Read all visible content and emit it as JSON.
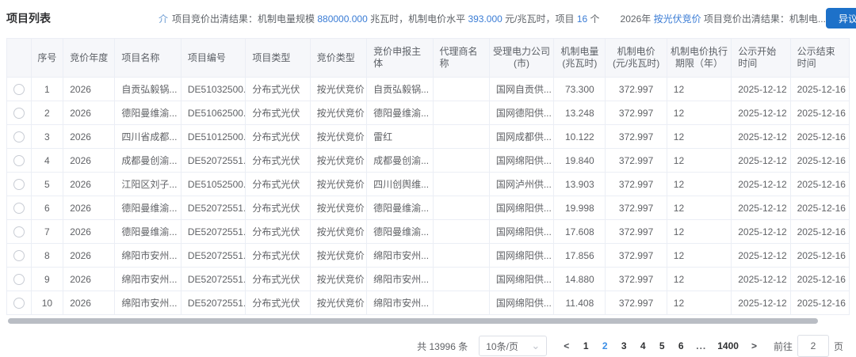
{
  "header": {
    "title": "项目列表",
    "announcement": {
      "icon": "介",
      "text1": "项目竞价出清结果：机制电量规模 ",
      "value1": "880000.000",
      "text2": " 兆瓦时，机制电价水平 ",
      "value2": "393.000",
      "text3": " 元/兆瓦时，项目 ",
      "value3": "16",
      "text4": " 个"
    },
    "announcement2": {
      "text1": "2026年 ",
      "link": "按光伏竞价",
      "text2": " 项目竞价出清结果：机制电..."
    },
    "feedback_button": "异议反馈"
  },
  "table": {
    "columns": [
      {
        "key": "select",
        "label": ""
      },
      {
        "key": "seq",
        "label": "序号"
      },
      {
        "key": "year",
        "label": "竞价年度"
      },
      {
        "key": "name",
        "label": "项目名称"
      },
      {
        "key": "code",
        "label": "项目编号"
      },
      {
        "key": "type",
        "label": "项目类型"
      },
      {
        "key": "bid_type",
        "label": "竞价类型"
      },
      {
        "key": "entity",
        "label": "竞价申报主体"
      },
      {
        "key": "agent",
        "label": "代理商名称"
      },
      {
        "key": "company",
        "label": "受理电力公司\n(市)"
      },
      {
        "key": "energy",
        "label": "机制电量\n(兆瓦时)"
      },
      {
        "key": "price",
        "label": "机制电价\n(元/兆瓦时)"
      },
      {
        "key": "term",
        "label": "机制电价执行\n期限（年）"
      },
      {
        "key": "start",
        "label": "公示开始时间"
      },
      {
        "key": "end",
        "label": "公示结束时间"
      }
    ],
    "rows": [
      {
        "seq": "1",
        "year": "2026",
        "name": "自贡弘毅锅...",
        "code": "DE51032500...",
        "type": "分布式光伏",
        "bid_type": "按光伏竞价",
        "entity": "自贡弘毅锅...",
        "agent": "",
        "company": "国网自贡供...",
        "energy": "73.300",
        "price": "372.997",
        "term": "12",
        "start": "2025-12-12",
        "end": "2025-12-16"
      },
      {
        "seq": "2",
        "year": "2026",
        "name": "德阳曼维渝...",
        "code": "DE51062500...",
        "type": "分布式光伏",
        "bid_type": "按光伏竞价",
        "entity": "德阳曼维渝...",
        "agent": "",
        "company": "国网德阳供...",
        "energy": "13.248",
        "price": "372.997",
        "term": "12",
        "start": "2025-12-12",
        "end": "2025-12-16"
      },
      {
        "seq": "3",
        "year": "2026",
        "name": "四川省成都...",
        "code": "DE51012500...",
        "type": "分布式光伏",
        "bid_type": "按光伏竞价",
        "entity": "雷红",
        "agent": "",
        "company": "国网成都供...",
        "energy": "10.122",
        "price": "372.997",
        "term": "12",
        "start": "2025-12-12",
        "end": "2025-12-16"
      },
      {
        "seq": "4",
        "year": "2026",
        "name": "成都曼创渝...",
        "code": "DE52072551...",
        "type": "分布式光伏",
        "bid_type": "按光伏竞价",
        "entity": "成都曼创渝...",
        "agent": "",
        "company": "国网绵阳供...",
        "energy": "19.840",
        "price": "372.997",
        "term": "12",
        "start": "2025-12-12",
        "end": "2025-12-16"
      },
      {
        "seq": "5",
        "year": "2026",
        "name": "江阳区刘子...",
        "code": "DE51052500...",
        "type": "分布式光伏",
        "bid_type": "按光伏竞价",
        "entity": "四川创舆维...",
        "agent": "",
        "company": "国网泸州供...",
        "energy": "13.903",
        "price": "372.997",
        "term": "12",
        "start": "2025-12-12",
        "end": "2025-12-16"
      },
      {
        "seq": "6",
        "year": "2026",
        "name": "德阳曼维渝...",
        "code": "DE52072551...",
        "type": "分布式光伏",
        "bid_type": "按光伏竞价",
        "entity": "德阳曼维渝...",
        "agent": "",
        "company": "国网绵阳供...",
        "energy": "19.998",
        "price": "372.997",
        "term": "12",
        "start": "2025-12-12",
        "end": "2025-12-16"
      },
      {
        "seq": "7",
        "year": "2026",
        "name": "德阳曼维渝...",
        "code": "DE52072551...",
        "type": "分布式光伏",
        "bid_type": "按光伏竞价",
        "entity": "德阳曼维渝...",
        "agent": "",
        "company": "国网绵阳供...",
        "energy": "17.608",
        "price": "372.997",
        "term": "12",
        "start": "2025-12-12",
        "end": "2025-12-16"
      },
      {
        "seq": "8",
        "year": "2026",
        "name": "绵阳市安州...",
        "code": "DE52072551...",
        "type": "分布式光伏",
        "bid_type": "按光伏竞价",
        "entity": "绵阳市安州...",
        "agent": "",
        "company": "国网绵阳供...",
        "energy": "17.856",
        "price": "372.997",
        "term": "12",
        "start": "2025-12-12",
        "end": "2025-12-16"
      },
      {
        "seq": "9",
        "year": "2026",
        "name": "绵阳市安州...",
        "code": "DE52072551...",
        "type": "分布式光伏",
        "bid_type": "按光伏竞价",
        "entity": "绵阳市安州...",
        "agent": "",
        "company": "国网绵阳供...",
        "energy": "14.880",
        "price": "372.997",
        "term": "12",
        "start": "2025-12-12",
        "end": "2025-12-16"
      },
      {
        "seq": "10",
        "year": "2026",
        "name": "绵阳市安州...",
        "code": "DE52072551...",
        "type": "分布式光伏",
        "bid_type": "按光伏竞价",
        "entity": "绵阳市安州...",
        "agent": "",
        "company": "国网绵阳供...",
        "energy": "11.408",
        "price": "372.997",
        "term": "12",
        "start": "2025-12-12",
        "end": "2025-12-16"
      }
    ]
  },
  "pagination": {
    "total_text": "共 13996 条",
    "page_size": "10条/页",
    "chevron_icon": "⌄",
    "prev_icon": "<",
    "next_icon": ">",
    "pages": [
      "1",
      "2",
      "3",
      "4",
      "5",
      "6",
      "...",
      "1400"
    ],
    "active_page": "2",
    "goto_label": "前往",
    "goto_value": "2",
    "goto_suffix": "页"
  },
  "colors": {
    "primary_button_blue": "#1d71c9",
    "link_blue": "#3a7cd5",
    "active_page_blue": "#3a8ee6",
    "header_bg": "#f6f7fa",
    "border": "#ebeef5"
  }
}
